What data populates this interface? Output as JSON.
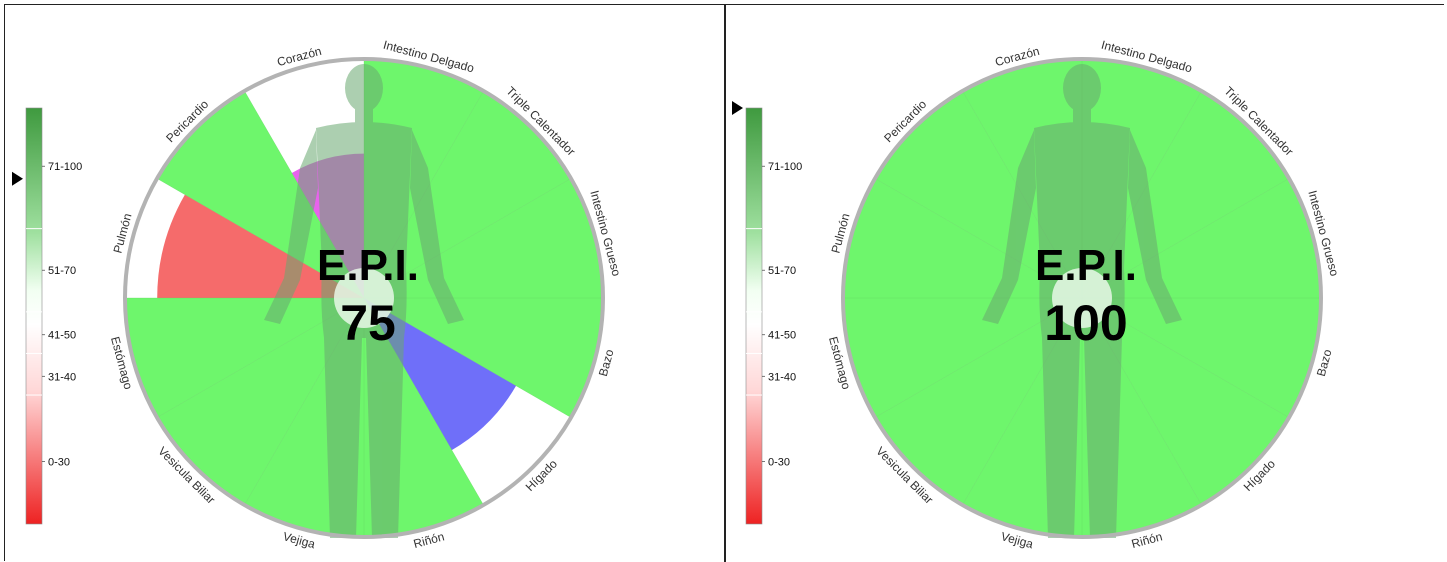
{
  "colors": {
    "green": "#6ef66c",
    "red": "#f56b6b",
    "magenta": "#e863ec",
    "blue": "#6f6ff9",
    "rim": "#b3b3b3",
    "body": "#6aa870"
  },
  "legend_ticks": [
    "71-100",
    "51-70",
    "41-50",
    "31-40",
    "0-30"
  ],
  "chart_data": [
    {
      "type": "polar-bar",
      "title": "E.P.I.",
      "value": "75",
      "indicator_level": 83,
      "sectors": [
        {
          "label": "Intestino Delgado",
          "value": 100,
          "color": "green"
        },
        {
          "label": "Triple Calentador",
          "value": 100,
          "color": "green"
        },
        {
          "label": "Intestino Grueso",
          "value": 100,
          "color": "green"
        },
        {
          "label": "Bazo",
          "value": 100,
          "color": "green"
        },
        {
          "label": "Hígado",
          "value": 70,
          "color": "blue"
        },
        {
          "label": "Riñón",
          "value": 100,
          "color": "green"
        },
        {
          "label": "Vejiga",
          "value": 100,
          "color": "green"
        },
        {
          "label": "Vesicula Biliar",
          "value": 100,
          "color": "green"
        },
        {
          "label": "Estómago",
          "value": 100,
          "color": "green"
        },
        {
          "label": "Pulmón",
          "value": 85,
          "color": "red"
        },
        {
          "label": "Pericardio",
          "value": 100,
          "color": "green"
        },
        {
          "label": "Corazón",
          "value": 55,
          "color": "magenta"
        }
      ]
    },
    {
      "type": "polar-bar",
      "title": "E.P.I.",
      "value": "100",
      "indicator_level": 100,
      "sectors": [
        {
          "label": "Intestino Delgado",
          "value": 100,
          "color": "green"
        },
        {
          "label": "Triple Calentador",
          "value": 100,
          "color": "green"
        },
        {
          "label": "Intestino Grueso",
          "value": 100,
          "color": "green"
        },
        {
          "label": "Bazo",
          "value": 100,
          "color": "green"
        },
        {
          "label": "Hígado",
          "value": 100,
          "color": "green"
        },
        {
          "label": "Riñón",
          "value": 100,
          "color": "green"
        },
        {
          "label": "Vejiga",
          "value": 100,
          "color": "green"
        },
        {
          "label": "Vesicula Biliar",
          "value": 100,
          "color": "green"
        },
        {
          "label": "Estómago",
          "value": 100,
          "color": "green"
        },
        {
          "label": "Pulmón",
          "value": 100,
          "color": "green"
        },
        {
          "label": "Pericardio",
          "value": 100,
          "color": "green"
        },
        {
          "label": "Corazón",
          "value": 100,
          "color": "green"
        }
      ]
    }
  ]
}
